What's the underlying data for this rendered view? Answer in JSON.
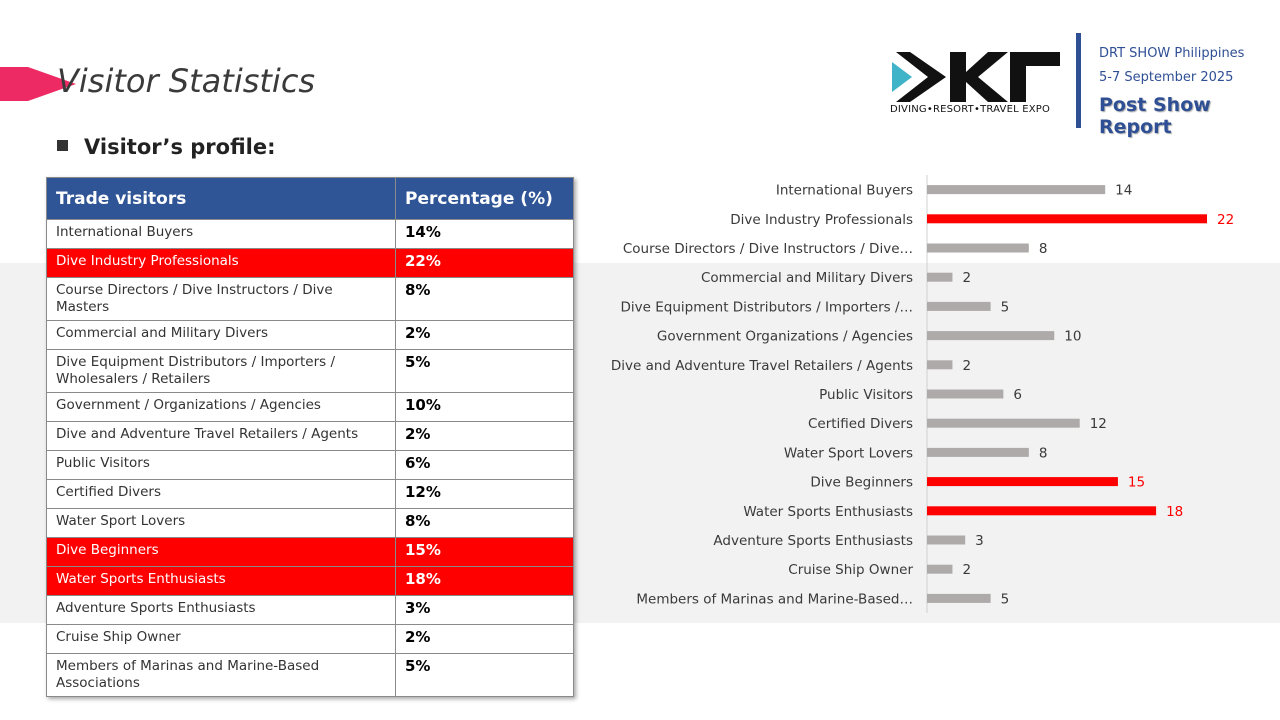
{
  "slide": {
    "title": "Visitor Statistics",
    "subtitle": "Visitor’s profile:"
  },
  "header": {
    "logo_text": "DIVING•RESORT•TRAVEL EXPO",
    "show_name": "DRT SHOW Philippines",
    "show_date": "5-7 September 2025",
    "report": "Post Show Report"
  },
  "colors": {
    "highlight": "#ff0000",
    "bar_default": "#aeaaaa",
    "header_blue": "#2f5597",
    "accent_pink": "#ed2a63"
  },
  "table": {
    "col1": "Trade visitors",
    "col2": "Percentage (%)",
    "rows": [
      {
        "label": "International Buyers",
        "value": "14%",
        "highlight": false
      },
      {
        "label": "Dive Industry Professionals",
        "value": "22%",
        "highlight": true
      },
      {
        "label": "Course Directors / Dive Instructors / Dive Masters",
        "value": "8%",
        "highlight": false
      },
      {
        "label": "Commercial and Military Divers",
        "value": "2%",
        "highlight": false
      },
      {
        "label": "Dive Equipment Distributors / Importers / Wholesalers / Retailers",
        "value": "5%",
        "highlight": false
      },
      {
        "label": "Government / Organizations / Agencies",
        "value": "10%",
        "highlight": false
      },
      {
        "label": "Dive and Adventure Travel Retailers / Agents",
        "value": "2%",
        "highlight": false
      },
      {
        "label": "Public Visitors",
        "value": "6%",
        "highlight": false
      },
      {
        "label": "Certified Divers",
        "value": "12%",
        "highlight": false
      },
      {
        "label": "Water Sport Lovers",
        "value": "8%",
        "highlight": false
      },
      {
        "label": "Dive Beginners",
        "value": "15%",
        "highlight": true
      },
      {
        "label": "Water Sports Enthusiasts",
        "value": "18%",
        "highlight": true
      },
      {
        "label": "Adventure Sports Enthusiasts",
        "value": "3%",
        "highlight": false
      },
      {
        "label": "Cruise Ship Owner",
        "value": "2%",
        "highlight": false
      },
      {
        "label": "Members of Marinas and Marine-Based Associations",
        "value": "5%",
        "highlight": false
      }
    ]
  },
  "chart_data": {
    "type": "bar",
    "orientation": "horizontal",
    "categories": [
      "International Buyers",
      "Dive Industry Professionals",
      "Course Directors / Dive Instructors / Dive…",
      "Commercial and Military Divers",
      "Dive Equipment Distributors / Importers /…",
      "Government Organizations / Agencies",
      "Dive and Adventure Travel Retailers / Agents",
      "Public Visitors",
      "Certified Divers",
      "Water Sport Lovers",
      "Dive Beginners",
      "Water Sports Enthusiasts",
      "Adventure Sports Enthusiasts",
      "Cruise Ship Owner",
      "Members of Marinas and Marine-Based…"
    ],
    "values": [
      14,
      22,
      8,
      2,
      5,
      10,
      2,
      6,
      12,
      8,
      15,
      18,
      3,
      2,
      5
    ],
    "highlighted": [
      false,
      true,
      false,
      false,
      false,
      false,
      false,
      false,
      false,
      false,
      true,
      true,
      false,
      false,
      false
    ],
    "xlim": [
      0,
      22
    ],
    "grid": false,
    "legend": "none"
  }
}
